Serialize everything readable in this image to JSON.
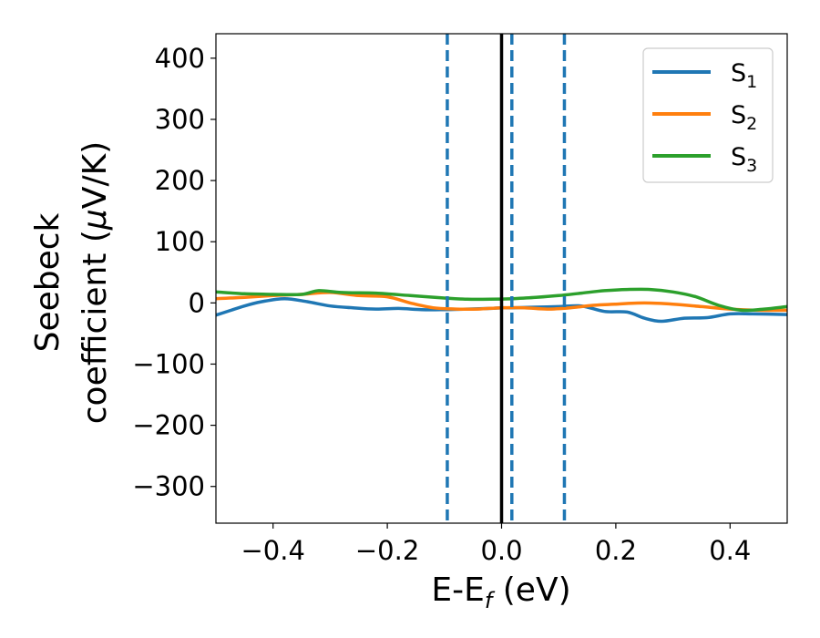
{
  "chart_data": {
    "type": "line",
    "xlabel": {
      "main": "E-E",
      "sub": "f",
      "tail": " (eV)"
    },
    "ylabel": {
      "line1": "Seebeck",
      "line2a": "coefficient  (",
      "mu": "μ",
      "line2b": "V/K)"
    },
    "xlim": [
      -0.5,
      0.5
    ],
    "ylim": [
      -360,
      440
    ],
    "xticks": [
      -0.4,
      -0.2,
      0.0,
      0.2,
      0.4
    ],
    "xtick_labels": [
      "−0.4",
      "−0.2",
      "0.0",
      "0.2",
      "0.4"
    ],
    "yticks": [
      400,
      300,
      200,
      100,
      0,
      -100,
      -200,
      -300
    ],
    "ytick_labels": [
      "400",
      "300",
      "200",
      "100",
      "0",
      "−100",
      "−200",
      "−300"
    ],
    "grid": false,
    "legend_position": "top-right",
    "vertical_lines": [
      {
        "x": -0.095,
        "style": "dashed",
        "color": "#1f77b4"
      },
      {
        "x": 0.0,
        "style": "solid",
        "color": "#000000"
      },
      {
        "x": 0.018,
        "style": "dashed",
        "color": "#1f77b4"
      },
      {
        "x": 0.11,
        "style": "dashed",
        "color": "#1f77b4"
      }
    ],
    "series": [
      {
        "name": "S",
        "sub": "1",
        "color": "#1f77b4",
        "x": [
          -0.5,
          -0.45,
          -0.42,
          -0.38,
          -0.34,
          -0.3,
          -0.26,
          -0.22,
          -0.18,
          -0.14,
          -0.1,
          -0.06,
          -0.02,
          0.0,
          0.02,
          0.06,
          0.1,
          0.14,
          0.18,
          0.22,
          0.25,
          0.28,
          0.32,
          0.36,
          0.4,
          0.44,
          0.5
        ],
        "y": [
          -20,
          -5,
          2,
          7,
          2,
          -5,
          -8,
          -10,
          -9,
          -11,
          -11,
          -10,
          -9,
          -8,
          -8,
          -7,
          -6,
          -5,
          -14,
          -15,
          -25,
          -30,
          -25,
          -24,
          -18,
          -18,
          -19
        ]
      },
      {
        "name": "S",
        "sub": "2",
        "color": "#ff7f0e",
        "x": [
          -0.5,
          -0.45,
          -0.4,
          -0.35,
          -0.3,
          -0.25,
          -0.2,
          -0.16,
          -0.12,
          -0.08,
          -0.04,
          0.0,
          0.04,
          0.08,
          0.12,
          0.16,
          0.2,
          0.25,
          0.3,
          0.35,
          0.4,
          0.45,
          0.5
        ],
        "y": [
          7,
          9,
          12,
          14,
          17,
          12,
          10,
          0,
          -8,
          -10,
          -10,
          -8,
          -8,
          -10,
          -8,
          -4,
          -2,
          0,
          -2,
          -6,
          -10,
          -12,
          -12
        ]
      },
      {
        "name": "S",
        "sub": "3",
        "color": "#2ca02c",
        "x": [
          -0.5,
          -0.45,
          -0.4,
          -0.35,
          -0.32,
          -0.28,
          -0.22,
          -0.16,
          -0.1,
          -0.06,
          -0.02,
          0.02,
          0.06,
          0.1,
          0.14,
          0.18,
          0.22,
          0.26,
          0.3,
          0.34,
          0.38,
          0.42,
          0.46,
          0.5
        ],
        "y": [
          18,
          15,
          14,
          14,
          20,
          17,
          16,
          12,
          8,
          6,
          6,
          7,
          9,
          12,
          16,
          20,
          22,
          22,
          18,
          10,
          -4,
          -12,
          -10,
          -6
        ]
      }
    ]
  }
}
